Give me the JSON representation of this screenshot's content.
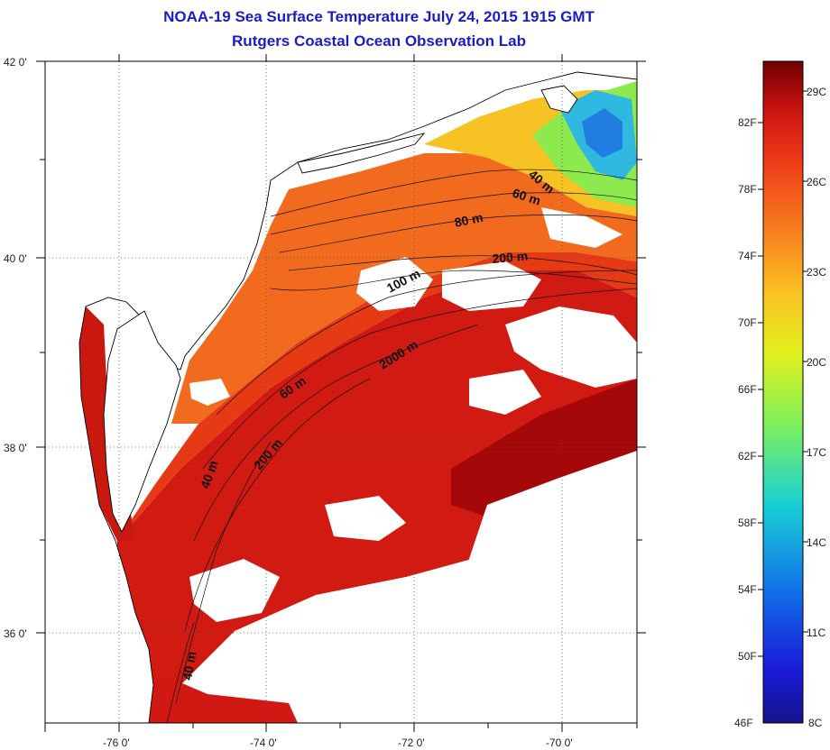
{
  "title": "NOAA-19 Sea Surface Temperature July 24, 2015 1915 GMT",
  "subtitle": "Rutgers Coastal Ocean Observation Lab",
  "map": {
    "lat_labels": [
      "42 0'",
      "40 0'",
      "38 0'",
      "36 0'"
    ],
    "lon_labels": [
      "-76 0'",
      "-74 0'",
      "-72 0'",
      "-70 0'"
    ],
    "grid": "dotted",
    "contour_labels": [
      "40 m",
      "60 m",
      "80 m",
      "200 m",
      "100 m",
      "2000 m",
      "60 m",
      "200 m",
      "40 m",
      "40 m"
    ],
    "cloud_mask_color": "#ffffff",
    "land_color": "#ffffff"
  },
  "colorbar": {
    "left_labels": [
      "82F",
      "78F",
      "74F",
      "70F",
      "66F",
      "62F",
      "58F",
      "54F",
      "50F",
      "46F"
    ],
    "right_labels": [
      "29C",
      "26C",
      "23C",
      "20C",
      "17C",
      "14C",
      "11C",
      "8C"
    ],
    "colors": [
      "#6e0000",
      "#c81210",
      "#ee3a18",
      "#f87a1e",
      "#fbc222",
      "#e3f01c",
      "#7ef05c",
      "#18d0d4",
      "#1070e8",
      "#1a1ad8",
      "#14148c"
    ]
  }
}
